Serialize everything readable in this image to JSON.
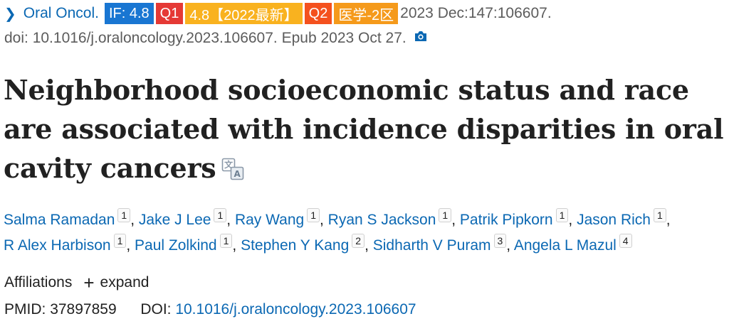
{
  "citation": {
    "journal": "Oral Oncol.",
    "badges": {
      "impact_factor": "IF: 4.8",
      "quartile": "Q1",
      "if_2022": "4.8【2022最新】",
      "quartile_2": "Q2",
      "zone": "医学-2区"
    },
    "date_volume": "2023 Dec:147:106607.",
    "doi_line": "doi: 10.1016/j.oraloncology.2023.106607. Epub 2023 Oct 27."
  },
  "title": "Neighborhood socioeconomic status and race are associated with incidence disparities in oral cavity cancers",
  "authors": [
    {
      "name": "Salma Ramadan",
      "aff": "1"
    },
    {
      "name": "Jake J Lee",
      "aff": "1"
    },
    {
      "name": "Ray Wang",
      "aff": "1"
    },
    {
      "name": "Ryan S Jackson",
      "aff": "1"
    },
    {
      "name": "Patrik Pipkorn",
      "aff": "1"
    },
    {
      "name": "Jason Rich",
      "aff": "1"
    },
    {
      "name": "R Alex Harbison",
      "aff": "1"
    },
    {
      "name": "Paul Zolkind",
      "aff": "1"
    },
    {
      "name": "Stephen Y Kang",
      "aff": "2"
    },
    {
      "name": "Sidharth V Puram",
      "aff": "3"
    },
    {
      "name": "Angela L Mazul",
      "aff": "4"
    }
  ],
  "affiliations": {
    "label": "Affiliations",
    "expand_label": "expand"
  },
  "identifiers": {
    "pmid_label": "PMID:",
    "pmid": "37897859",
    "doi_label": "DOI:",
    "doi": "10.1016/j.oraloncology.2023.106607"
  },
  "icons": {
    "chevron": "chevron-right-icon",
    "camera": "camera-icon",
    "translate": "translate-icon",
    "plus": "plus-icon"
  },
  "colors": {
    "link": "#0b68b3",
    "badge_if": "#1976d2",
    "badge_q1": "#e53935",
    "badge_if2022": "#f9b21f",
    "badge_q2": "#f4511e",
    "badge_zone": "#f59a1b"
  }
}
